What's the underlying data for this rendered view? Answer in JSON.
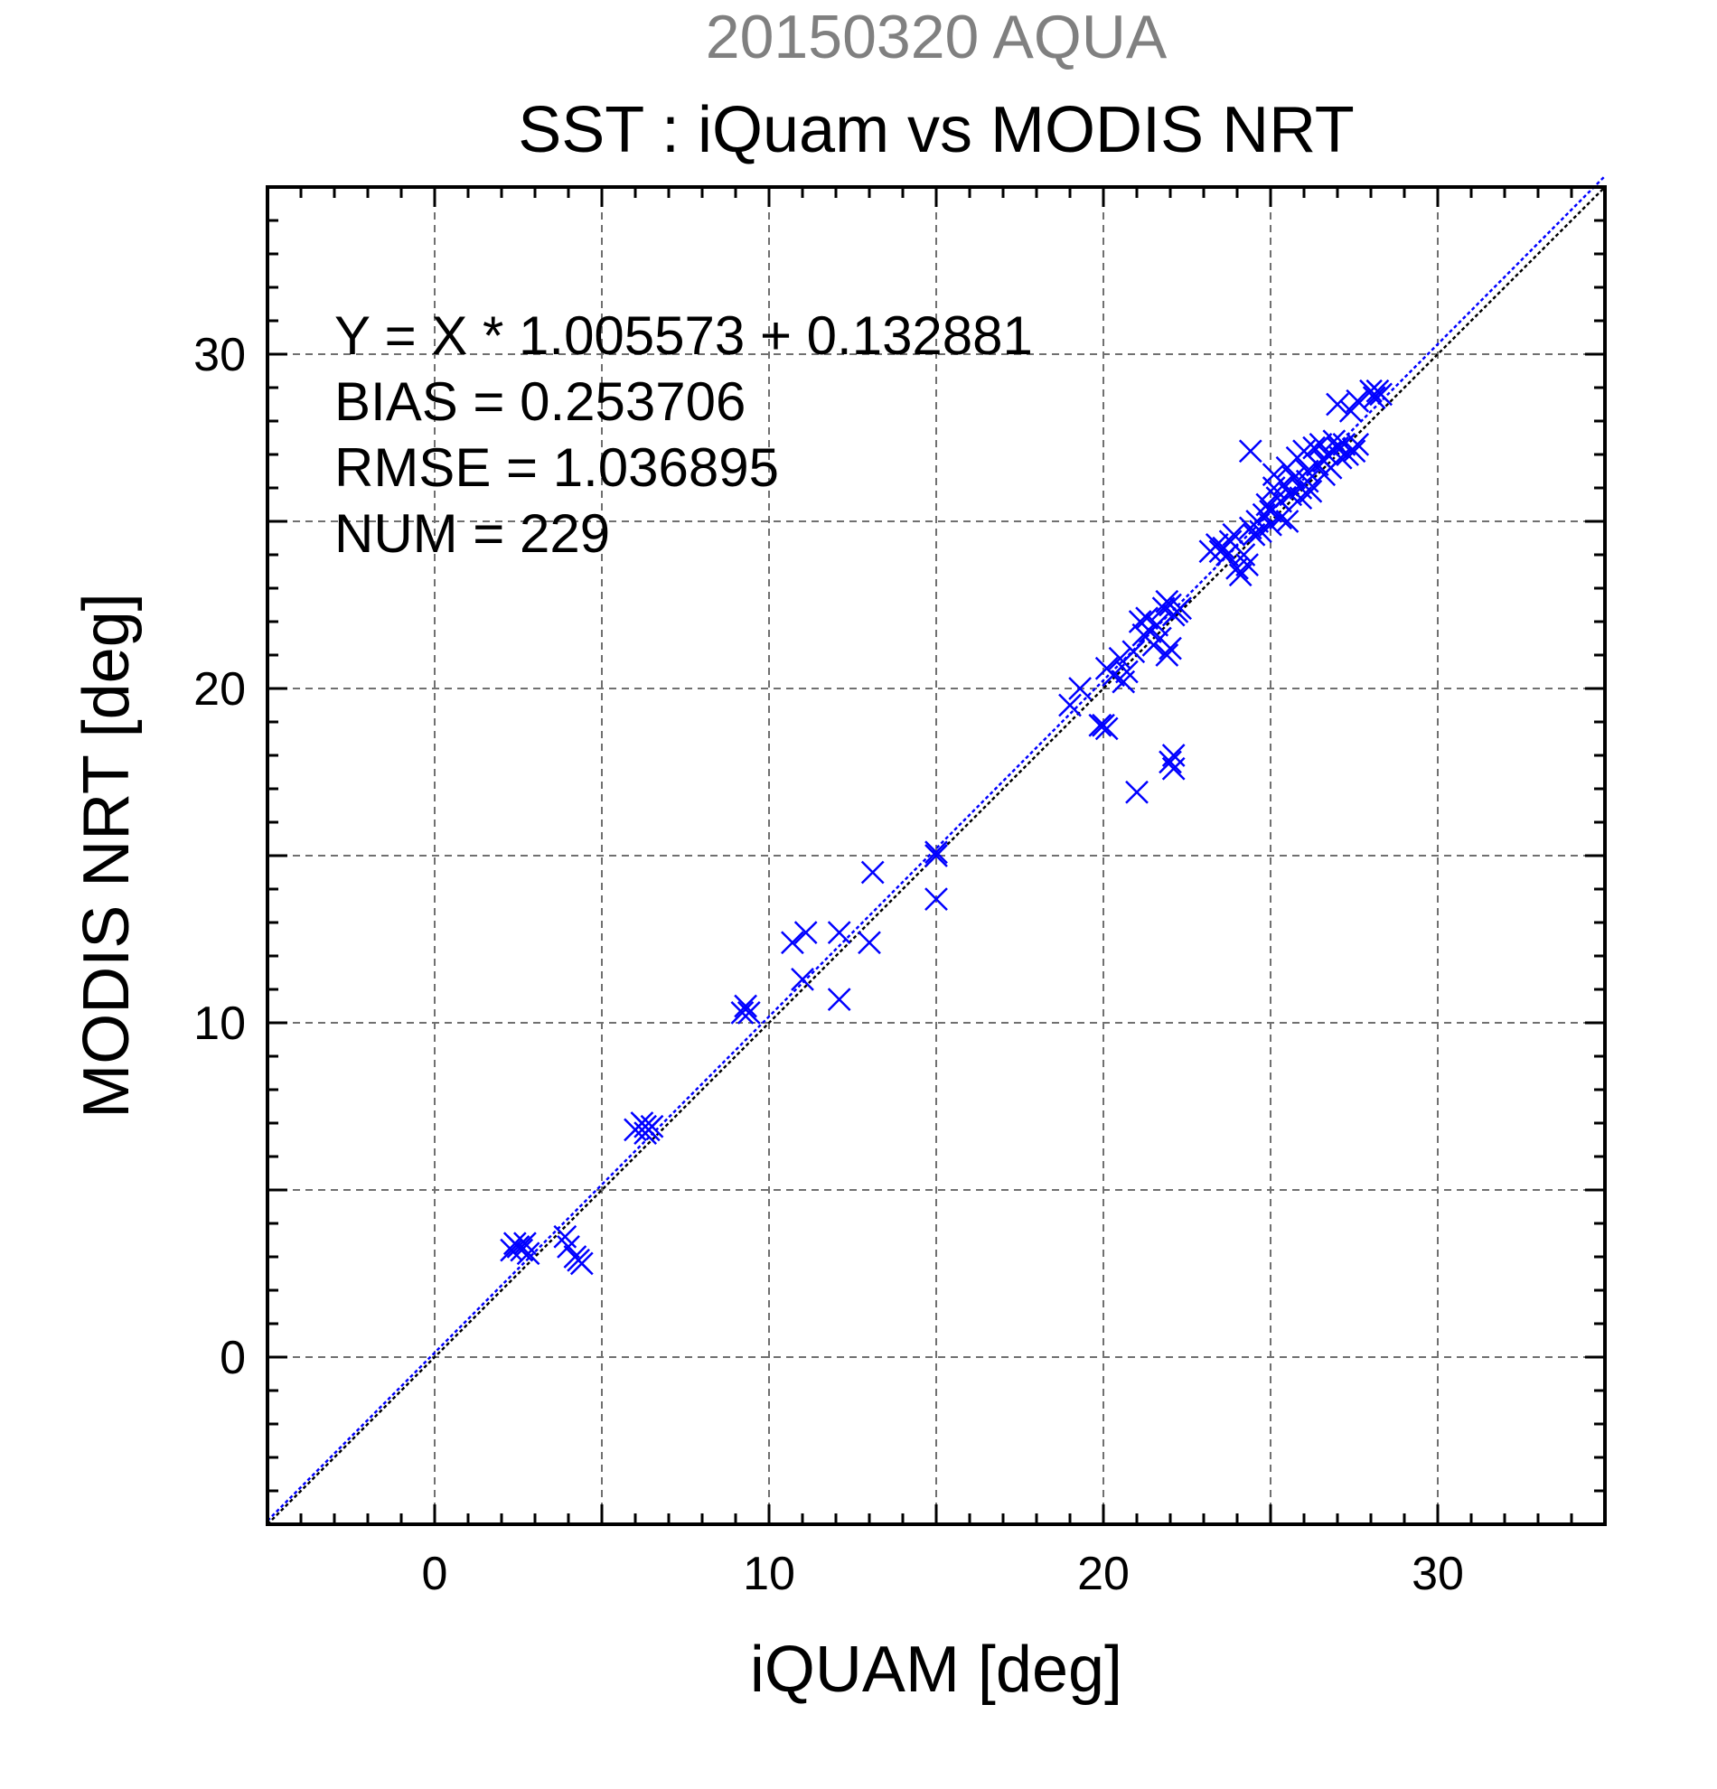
{
  "chart_data": {
    "type": "scatter",
    "title": "SST : iQuam vs MODIS NRT",
    "subtitle": "20150320 AQUA",
    "xlabel": "iQUAM [deg]",
    "ylabel": "MODIS NRT [deg]",
    "xlim": [
      -5,
      35
    ],
    "ylim": [
      -5,
      35
    ],
    "x_ticks": [
      0,
      10,
      20,
      30
    ],
    "y_ticks": [
      0,
      10,
      20,
      30
    ],
    "minor_grid_step": 5,
    "grid": true,
    "marker": "x",
    "series_color": "#0000ff",
    "fit_line_color": "#0000ff",
    "identity_line_color": "#000000",
    "fit": {
      "slope": 1.005573,
      "intercept": 0.132881
    },
    "stats": [
      "Y = X * 1.005573 + 0.132881",
      "BIAS = 0.253706",
      "RMSE = 1.036895",
      "NUM = 229"
    ],
    "legend_position": "top-left",
    "points": [
      [
        2.3,
        3.2
      ],
      [
        2.4,
        3.4
      ],
      [
        2.5,
        3.3
      ],
      [
        2.6,
        3.2
      ],
      [
        2.7,
        3.4
      ],
      [
        2.8,
        3.1
      ],
      [
        3.9,
        3.6
      ],
      [
        4.0,
        3.3
      ],
      [
        4.2,
        3.0
      ],
      [
        4.3,
        2.9
      ],
      [
        4.4,
        2.8
      ],
      [
        6.0,
        6.8
      ],
      [
        6.2,
        7.0
      ],
      [
        6.3,
        6.9
      ],
      [
        6.4,
        6.8
      ],
      [
        6.5,
        6.9
      ],
      [
        6.3,
        6.7
      ],
      [
        9.2,
        10.3
      ],
      [
        9.3,
        10.5
      ],
      [
        9.4,
        10.3
      ],
      [
        10.7,
        12.4
      ],
      [
        11.0,
        11.3
      ],
      [
        11.1,
        12.7
      ],
      [
        12.1,
        10.7
      ],
      [
        12.1,
        12.7
      ],
      [
        13.0,
        12.4
      ],
      [
        13.1,
        14.5
      ],
      [
        15.0,
        15.0
      ],
      [
        15.0,
        15.1
      ],
      [
        15.0,
        13.7
      ],
      [
        19.0,
        19.5
      ],
      [
        19.3,
        20.0
      ],
      [
        19.9,
        18.9
      ],
      [
        20.0,
        18.9
      ],
      [
        20.1,
        18.8
      ],
      [
        20.1,
        20.6
      ],
      [
        20.3,
        20.4
      ],
      [
        20.5,
        20.9
      ],
      [
        20.6,
        20.2
      ],
      [
        20.7,
        20.5
      ],
      [
        20.9,
        21.1
      ],
      [
        21.0,
        16.9
      ],
      [
        21.1,
        22.0
      ],
      [
        21.2,
        21.6
      ],
      [
        21.3,
        22.1
      ],
      [
        21.4,
        21.7
      ],
      [
        21.5,
        21.3
      ],
      [
        21.6,
        21.9
      ],
      [
        21.7,
        21.5
      ],
      [
        21.8,
        22.4
      ],
      [
        21.9,
        22.6
      ],
      [
        22.0,
        22.5
      ],
      [
        22.1,
        22.2
      ],
      [
        21.9,
        21.0
      ],
      [
        22.0,
        21.2
      ],
      [
        22.0,
        17.8
      ],
      [
        22.1,
        17.6
      ],
      [
        22.1,
        18.0
      ],
      [
        22.2,
        22.3
      ],
      [
        22.3,
        22.4
      ],
      [
        23.2,
        24.1
      ],
      [
        23.4,
        24.3
      ],
      [
        23.5,
        24.1
      ],
      [
        23.6,
        24.2
      ],
      [
        23.7,
        24.0
      ],
      [
        23.8,
        24.4
      ],
      [
        23.9,
        24.6
      ],
      [
        24.0,
        23.6
      ],
      [
        24.1,
        23.4
      ],
      [
        24.2,
        24.0
      ],
      [
        24.3,
        23.7
      ],
      [
        24.4,
        27.1
      ],
      [
        24.4,
        24.8
      ],
      [
        24.5,
        24.6
      ],
      [
        24.6,
        25.0
      ],
      [
        24.7,
        24.7
      ],
      [
        24.8,
        25.2
      ],
      [
        24.9,
        25.5
      ],
      [
        25.0,
        25.3
      ],
      [
        25.0,
        24.9
      ],
      [
        25.1,
        26.0
      ],
      [
        25.1,
        26.4
      ],
      [
        25.2,
        25.7
      ],
      [
        25.3,
        25.1
      ],
      [
        25.4,
        26.1
      ],
      [
        25.5,
        26.6
      ],
      [
        25.6,
        25.8
      ],
      [
        25.7,
        26.3
      ],
      [
        25.8,
        26.9
      ],
      [
        25.9,
        26.0
      ],
      [
        26.0,
        27.1
      ],
      [
        26.1,
        26.5
      ],
      [
        26.2,
        25.9
      ],
      [
        26.3,
        27.2
      ],
      [
        26.4,
        26.7
      ],
      [
        26.5,
        27.3
      ],
      [
        26.6,
        26.8
      ],
      [
        26.7,
        27.0
      ],
      [
        26.8,
        26.6
      ],
      [
        26.9,
        27.4
      ],
      [
        27.0,
        27.2
      ],
      [
        27.0,
        28.5
      ],
      [
        27.1,
        26.9
      ],
      [
        27.2,
        27.3
      ],
      [
        27.3,
        27.0
      ],
      [
        27.4,
        28.3
      ],
      [
        27.5,
        27.1
      ],
      [
        27.6,
        27.3
      ],
      [
        27.6,
        28.6
      ],
      [
        28.0,
        28.9
      ],
      [
        28.1,
        28.7
      ],
      [
        28.2,
        28.9
      ],
      [
        28.3,
        28.8
      ],
      [
        25.3,
        25.6
      ],
      [
        25.5,
        25.0
      ],
      [
        25.9,
        25.7
      ],
      [
        26.1,
        26.2
      ],
      [
        26.6,
        26.4
      ]
    ]
  }
}
